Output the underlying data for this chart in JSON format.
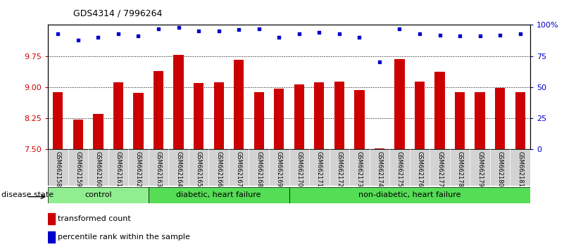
{
  "title": "GDS4314 / 7996264",
  "samples": [
    "GSM662158",
    "GSM662159",
    "GSM662160",
    "GSM662161",
    "GSM662162",
    "GSM662163",
    "GSM662164",
    "GSM662165",
    "GSM662166",
    "GSM662167",
    "GSM662168",
    "GSM662169",
    "GSM662170",
    "GSM662171",
    "GSM662172",
    "GSM662173",
    "GSM662174",
    "GSM662175",
    "GSM662176",
    "GSM662177",
    "GSM662178",
    "GSM662179",
    "GSM662180",
    "GSM662181"
  ],
  "bar_values": [
    8.88,
    8.22,
    8.35,
    9.12,
    8.87,
    9.38,
    9.77,
    9.1,
    9.12,
    9.66,
    8.88,
    8.97,
    9.07,
    9.12,
    9.13,
    8.93,
    7.52,
    9.68,
    9.13,
    9.37,
    8.88,
    8.88,
    8.98,
    8.88
  ],
  "percentile_values": [
    93,
    88,
    90,
    93,
    91,
    97,
    98,
    95,
    95,
    96,
    97,
    90,
    93,
    94,
    93,
    90,
    70,
    97,
    93,
    92,
    91,
    91,
    92,
    93
  ],
  "bar_color": "#cc0000",
  "percentile_color": "#0000cc",
  "ylim_left": [
    7.5,
    10.5
  ],
  "ylim_right": [
    0,
    100
  ],
  "yticks_left": [
    7.5,
    8.25,
    9.0,
    9.75
  ],
  "yticks_right": [
    0,
    25,
    50,
    75,
    100
  ],
  "ytick_labels_right": [
    "0",
    "25",
    "50",
    "75",
    "100%"
  ],
  "control_color": "#90ee90",
  "group_color": "#55dd55",
  "legend_bar_label": "transformed count",
  "legend_pct_label": "percentile rank within the sample",
  "disease_state_label": "disease state",
  "background_color": "#ffffff",
  "plot_bg_color": "#ffffff",
  "n_control": 5,
  "n_diabetic": 7,
  "n_nondiabetic": 12
}
